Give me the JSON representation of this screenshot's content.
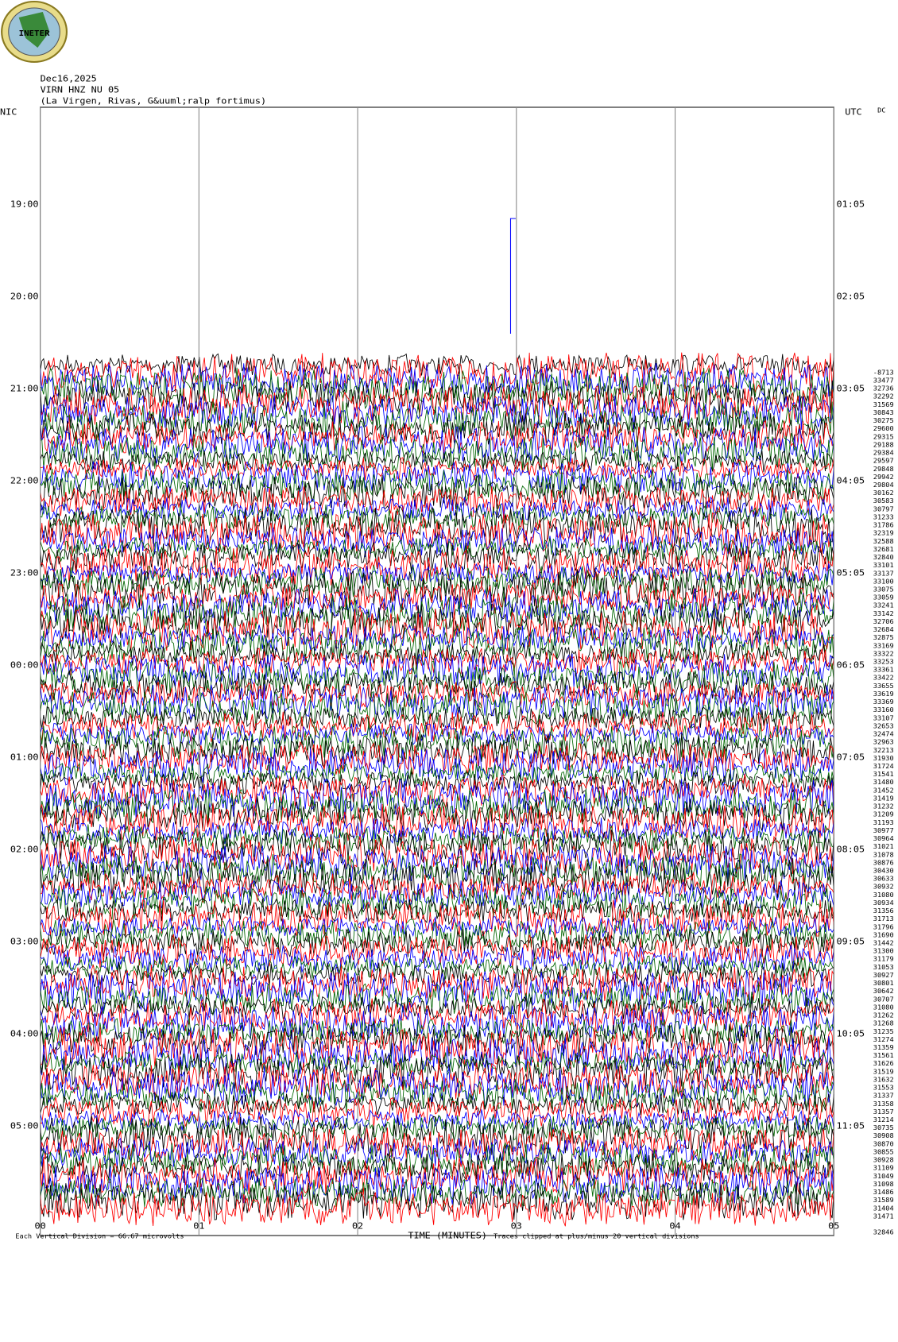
{
  "header": {
    "logo": "INETER",
    "date": "Dec16,2025",
    "station": "VIRN HNZ NU 05",
    "location": "(La Virgen, Rivas, G&uuml;ralp fortimus)"
  },
  "left_label": "NIC",
  "right_label": "UTC",
  "dc_label": "DC",
  "left_times": [
    "19:00",
    "20:00",
    "21:00",
    "22:00",
    "23:00",
    "00:00",
    "01:00",
    "02:00",
    "03:00",
    "04:00",
    "05:00"
  ],
  "right_times": [
    "01:05",
    "02:05",
    "03:05",
    "04:05",
    "05:05",
    "06:05",
    "07:05",
    "08:05",
    "09:05",
    "10:05",
    "11:05"
  ],
  "x_ticks": [
    "00",
    "01",
    "02",
    "03",
    "04",
    "05"
  ],
  "dc_values": [
    -8713,
    33477,
    32736,
    32292,
    31569,
    30843,
    30275,
    29600,
    29315,
    29188,
    29384,
    29597,
    29848,
    29942,
    29804,
    30162,
    30583,
    30797,
    31233,
    31786,
    32319,
    32588,
    32681,
    32840,
    33101,
    33137,
    33100,
    33075,
    33059,
    33241,
    33142,
    32706,
    32684,
    32875,
    33169,
    33322,
    33253,
    33361,
    33422,
    33655,
    33619,
    33369,
    33160,
    33107,
    32653,
    32474,
    32963,
    32213,
    31930,
    31724,
    31541,
    31480,
    31452,
    31419,
    31232,
    31209,
    31193,
    30977,
    30964,
    31021,
    31078,
    30876,
    30430,
    30633,
    30932,
    31080,
    30934,
    31356,
    31713,
    31796,
    31690,
    31442,
    31300,
    31179,
    31053,
    30927,
    30801,
    30642,
    30707,
    31080,
    31262,
    31268,
    31235,
    31274,
    31359,
    31561,
    31626,
    31519,
    31632,
    31553,
    31337,
    31358,
    31357,
    31214,
    30735,
    30908,
    30870,
    30855,
    30928,
    31109,
    31049,
    31098,
    31486,
    31589,
    31404,
    31471
  ],
  "dc_last": 32846,
  "footer": {
    "scale": "Each Vertical Division =   66.67 microvolts",
    "axis_title": "TIME (MINUTES)",
    "clip_note": "Traces clipped at plus/minus 20 vertical divisions"
  }
}
